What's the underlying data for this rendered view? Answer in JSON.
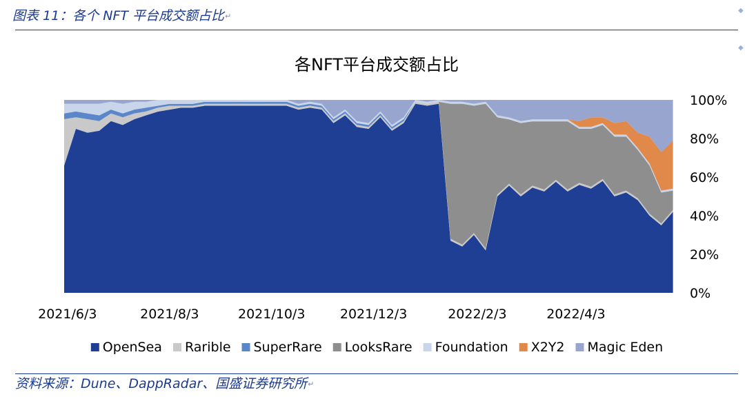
{
  "header": {
    "caption": "图表 11：各个 NFT 平台成交额占比"
  },
  "footer": {
    "source": "资料来源：Dune、DappRadar、国盛证券研究所"
  },
  "chart_data": {
    "type": "area",
    "stacked": true,
    "normalized": true,
    "title": "各NFT平台成交额占比",
    "xlabel": "",
    "ylabel": "",
    "x_tick_labels": [
      "2021/6/3",
      "2021/8/3",
      "2021/10/3",
      "2021/12/3",
      "2022/2/3",
      "2022/4/3"
    ],
    "x_range": [
      "2021/6/1",
      "2022/6/1"
    ],
    "y_tick_labels": [
      "0%",
      "20%",
      "40%",
      "60%",
      "80%",
      "100%"
    ],
    "ylim": [
      0,
      100
    ],
    "y_axis_side": "right",
    "legend_position": "bottom",
    "legend": [
      "OpenSea",
      "Rarible",
      "SuperRare",
      "LooksRare",
      "Foundation",
      "X2Y2",
      "Magic Eden"
    ],
    "colors": {
      "OpenSea": "#1f3f94",
      "Rarible": "#c9c9c9",
      "SuperRare": "#5b86c8",
      "LooksRare": "#8e8e8e",
      "Foundation": "#c8d5ea",
      "X2Y2": "#e0894a",
      "Magic Eden": "#98a6cf"
    },
    "x": [
      "2021/6/1",
      "2021/6/8",
      "2021/6/15",
      "2021/6/22",
      "2021/6/29",
      "2021/7/6",
      "2021/7/13",
      "2021/7/20",
      "2021/7/27",
      "2021/8/3",
      "2021/8/10",
      "2021/8/17",
      "2021/8/24",
      "2021/8/31",
      "2021/9/7",
      "2021/9/14",
      "2021/9/21",
      "2021/9/28",
      "2021/10/5",
      "2021/10/12",
      "2021/10/19",
      "2021/10/26",
      "2021/11/2",
      "2021/11/9",
      "2021/11/16",
      "2021/11/23",
      "2021/11/30",
      "2021/12/7",
      "2021/12/14",
      "2021/12/21",
      "2021/12/28",
      "2022/1/4",
      "2022/1/11",
      "2022/1/18",
      "2022/1/25",
      "2022/2/1",
      "2022/2/8",
      "2022/2/15",
      "2022/2/22",
      "2022/3/1",
      "2022/3/8",
      "2022/3/15",
      "2022/3/22",
      "2022/3/29",
      "2022/4/5",
      "2022/4/12",
      "2022/4/19",
      "2022/4/26",
      "2022/5/3",
      "2022/5/10",
      "2022/5/17",
      "2022/5/24",
      "2022/5/31"
    ],
    "series": [
      {
        "name": "OpenSea",
        "values": [
          66,
          85,
          83,
          84,
          89,
          87,
          90,
          92,
          93,
          94,
          95,
          95,
          96,
          96,
          96,
          97,
          96,
          96,
          97,
          96,
          94,
          96,
          95,
          88,
          92,
          86,
          85,
          91,
          84,
          88,
          98,
          97,
          98,
          27,
          24,
          30,
          22,
          50,
          55,
          50,
          54,
          52,
          57,
          52,
          56,
          54,
          58,
          50,
          52,
          48,
          40,
          35,
          42
        ]
      },
      {
        "name": "Rarible",
        "values": [
          24,
          6,
          7,
          5,
          4,
          4,
          3,
          2,
          2,
          2,
          1,
          1,
          1,
          1,
          1,
          1,
          1,
          1,
          1,
          1,
          1,
          1,
          1,
          1,
          1,
          1,
          1,
          1,
          1,
          1,
          1,
          1,
          1,
          1,
          1,
          1,
          1,
          1,
          1,
          1,
          1,
          1,
          1,
          1,
          1,
          1,
          1,
          1,
          1,
          1,
          1,
          1,
          1
        ]
      },
      {
        "name": "SuperRare",
        "values": [
          3,
          3,
          3,
          3,
          2,
          2,
          2,
          2,
          1,
          1,
          1,
          1,
          1,
          1,
          1,
          1,
          1,
          1,
          1,
          1,
          1,
          1,
          1,
          1,
          1,
          1,
          1,
          1,
          1,
          1,
          0,
          0,
          0,
          0,
          0,
          0,
          0,
          0,
          0,
          0,
          0,
          0,
          0,
          0,
          0,
          0,
          0,
          0,
          0,
          0,
          0,
          0,
          0
        ]
      },
      {
        "name": "LooksRare",
        "values": [
          0,
          0,
          0,
          0,
          0,
          0,
          0,
          0,
          0,
          0,
          0,
          0,
          0,
          0,
          0,
          0,
          0,
          0,
          0,
          0,
          0,
          0,
          0,
          0,
          0,
          0,
          0,
          0,
          0,
          0,
          0,
          0,
          0,
          70,
          73,
          66,
          75,
          40,
          33,
          37,
          33,
          35,
          30,
          35,
          28,
          30,
          28,
          30,
          28,
          25,
          25,
          16,
          10
        ]
      },
      {
        "name": "Foundation",
        "values": [
          5,
          4,
          5,
          6,
          4,
          5,
          4,
          3,
          3,
          2,
          2,
          2,
          1,
          1,
          1,
          1,
          1,
          1,
          1,
          1,
          1,
          1,
          1,
          1,
          1,
          1,
          1,
          1,
          1,
          1,
          1,
          1,
          1,
          1,
          1,
          1,
          1,
          1,
          1,
          1,
          1,
          1,
          1,
          1,
          1,
          1,
          1,
          1,
          1,
          1,
          1,
          1,
          1
        ]
      },
      {
        "name": "X2Y2",
        "values": [
          0,
          0,
          0,
          0,
          0,
          0,
          0,
          0,
          0,
          0,
          0,
          0,
          0,
          0,
          0,
          0,
          0,
          0,
          0,
          0,
          0,
          0,
          0,
          0,
          0,
          0,
          0,
          0,
          0,
          0,
          0,
          0,
          0,
          0,
          0,
          0,
          0,
          0,
          0,
          0,
          0,
          0,
          0,
          0,
          3,
          5,
          3,
          6,
          7,
          8,
          14,
          20,
          25
        ]
      },
      {
        "name": "Magic Eden",
        "values": [
          2,
          2,
          2,
          2,
          1,
          2,
          1,
          1,
          0,
          0,
          0,
          0,
          0,
          0,
          0,
          0,
          0,
          0,
          0,
          0,
          2,
          1,
          2,
          9,
          5,
          11,
          12,
          6,
          13,
          9,
          0,
          1,
          0,
          1,
          1,
          2,
          1,
          8,
          9,
          11,
          10,
          10,
          10,
          10,
          11,
          9,
          9,
          12,
          11,
          17,
          19,
          27,
          21
        ]
      }
    ]
  }
}
